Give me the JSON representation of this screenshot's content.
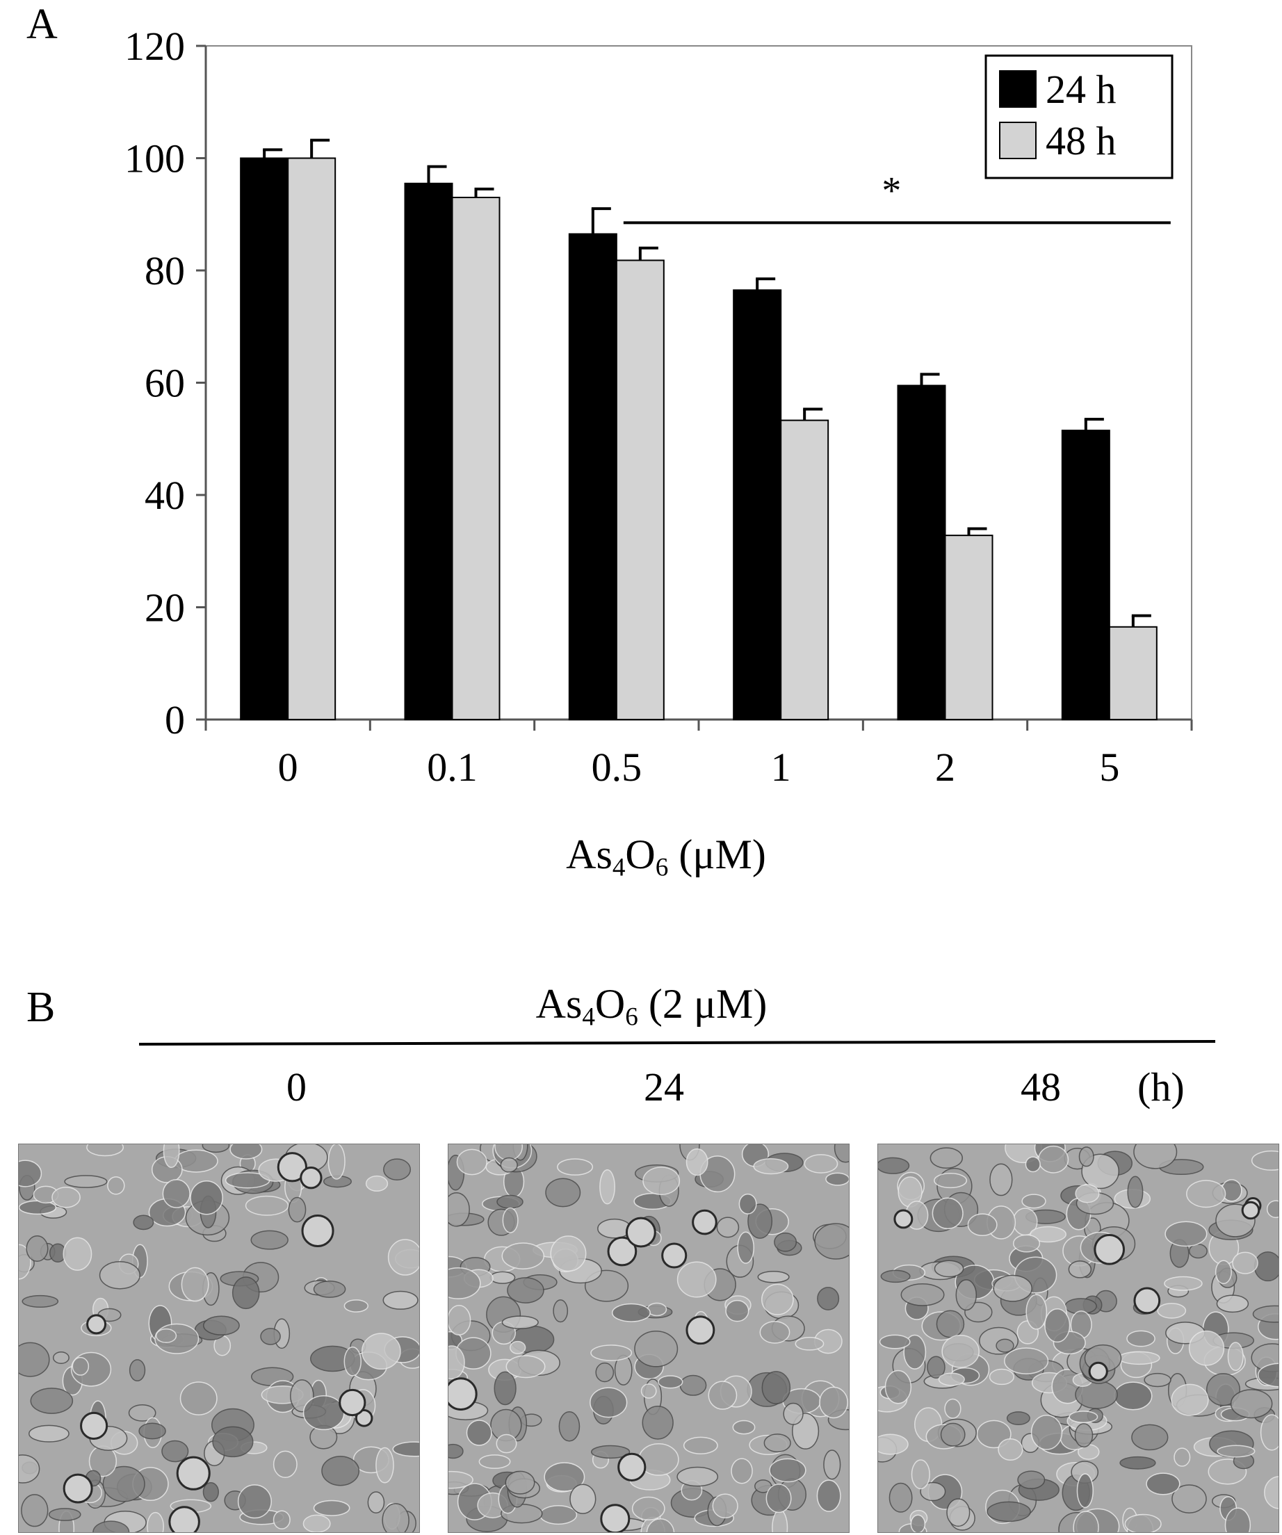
{
  "panel_a": {
    "letter": "A"
  },
  "panel_b": {
    "letter": "B",
    "title_main": "As",
    "title_sub1": "4",
    "title_mid": "O",
    "title_sub2": "6",
    "title_tail": " (2 μM)",
    "time_labels": [
      "0",
      "24",
      "48"
    ],
    "time_unit": "(h)",
    "micrograph_color": "#a9a9a9"
  },
  "chart_data": {
    "type": "bar",
    "categories": [
      "0",
      "0.1",
      "0.5",
      "1",
      "2",
      "5"
    ],
    "series": [
      {
        "name": "24 h",
        "values": [
          100,
          95.5,
          86.5,
          76.5,
          59.5,
          51.5
        ],
        "errors": [
          1.5,
          3.0,
          4.5,
          2.0,
          2.0,
          2.0
        ],
        "color": "#000000"
      },
      {
        "name": "48 h",
        "values": [
          100,
          93,
          81.8,
          53.3,
          32.8,
          16.5
        ],
        "errors": [
          3.2,
          1.5,
          2.2,
          2.0,
          1.2,
          2.0
        ],
        "color": "#d3d3d3"
      }
    ],
    "ylim": [
      0,
      120
    ],
    "yticks": [
      0,
      20,
      40,
      60,
      80,
      100,
      120
    ],
    "xlabel_main": "As",
    "xlabel_sub1": "4",
    "xlabel_mid": "O",
    "xlabel_sub2": "6",
    "xlabel_tail": " (μM)",
    "ylabel": "",
    "legend_position": "top-right",
    "significance": {
      "symbol": "*",
      "from_category": "0.5",
      "to_category": "5"
    },
    "grid": false
  }
}
